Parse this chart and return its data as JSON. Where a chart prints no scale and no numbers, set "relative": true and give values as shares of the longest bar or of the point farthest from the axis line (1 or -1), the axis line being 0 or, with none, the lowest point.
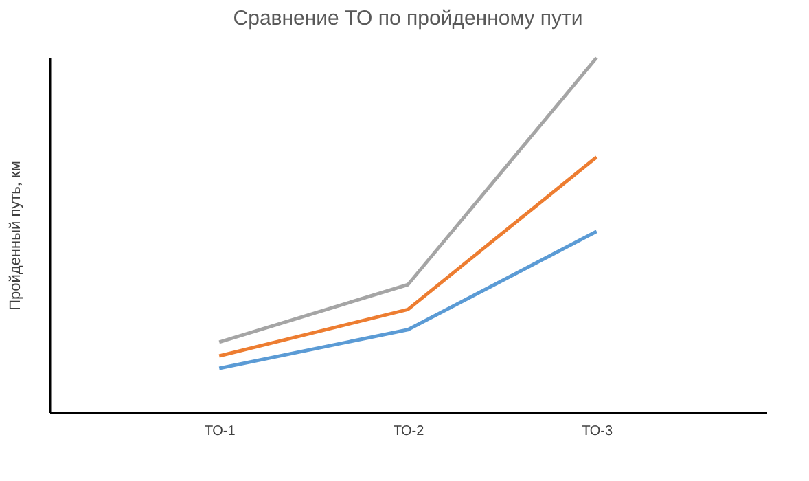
{
  "chart_data": {
    "type": "line",
    "title": "Сравнение ТО по пройденному пути",
    "ylabel": "Пройденный путь, км",
    "categories": [
      "ТО-1",
      "ТО-2",
      "ТО-3"
    ],
    "relative": true,
    "grid": false,
    "legend": false,
    "marker": "none",
    "line_style": "solid",
    "series": [
      {
        "color": "#5b9bd5",
        "values": [
          0.124,
          0.233,
          0.51
        ]
      },
      {
        "color": "#ed7d31",
        "values": [
          0.159,
          0.29,
          0.72
        ]
      },
      {
        "color": "#a5a5a5",
        "values": [
          0.198,
          0.36,
          1
        ]
      }
    ]
  }
}
